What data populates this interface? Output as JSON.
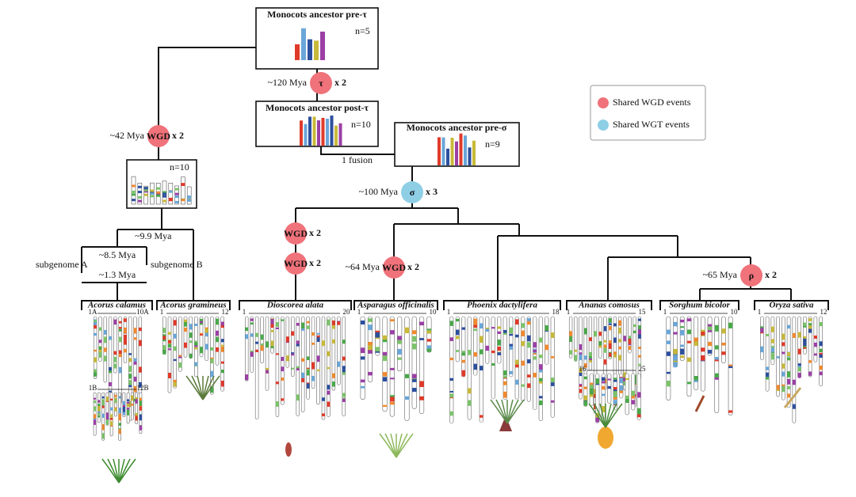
{
  "ancestors": [
    {
      "label": "Monocots ancestor pre-τ",
      "n": "n=5"
    },
    {
      "label": "Monocots ancestor post-τ",
      "n": "n=10"
    },
    {
      "label": "Monocots ancestor pre-σ",
      "n": "n=9"
    },
    {
      "n": "n=10"
    }
  ],
  "fusion": "1 fusion",
  "events": [
    {
      "time": "~120 Mya",
      "symbol": "τ",
      "multiplier": "x 2"
    },
    {
      "time": "~42 Mya",
      "symbol": "WGD",
      "multiplier": "x 2"
    },
    {
      "time": "~100 Mya",
      "symbol": "σ",
      "multiplier": "x 3"
    },
    {
      "symbol": "WGD",
      "multiplier": "x 2"
    },
    {
      "symbol": "WGD",
      "multiplier": "x 2"
    },
    {
      "time": "~64 Mya",
      "symbol": "WGD",
      "multiplier": "x 2"
    },
    {
      "time": "~65 Mya",
      "symbol": "ρ",
      "multiplier": "x 2"
    }
  ],
  "acorus": {
    "split": "~9.9 Mya",
    "subsplit": "~8.5 Mya",
    "recent": "~1.3 Mya",
    "subgenome_a": "subgenome A",
    "subgenome_b": "subgenome B"
  },
  "legend": [
    "Shared WGD events",
    "Shared WGT events"
  ],
  "species": [
    {
      "name": "Acorus calamus",
      "ranges": [
        [
          "1A",
          "10A"
        ],
        [
          "1B",
          "12B"
        ]
      ]
    },
    {
      "name": "Acorus gramineus",
      "ranges": [
        [
          "1",
          "12"
        ]
      ]
    },
    {
      "name": "Dioscorea alata",
      "ranges": [
        [
          "1",
          "20"
        ]
      ]
    },
    {
      "name": "Asparagus officinalis",
      "ranges": [
        [
          "1",
          "10"
        ]
      ]
    },
    {
      "name": "Phoenix dactylifera",
      "ranges": [
        [
          "1",
          "18"
        ]
      ]
    },
    {
      "name": "Ananas comosus",
      "ranges": [
        [
          "1",
          "15"
        ],
        [
          "16",
          "25"
        ]
      ]
    },
    {
      "name": "Sorghum bicolor",
      "ranges": [
        [
          "1",
          "10"
        ]
      ]
    },
    {
      "name": "Oryza sativa",
      "ranges": [
        [
          "1",
          "12"
        ]
      ]
    }
  ]
}
